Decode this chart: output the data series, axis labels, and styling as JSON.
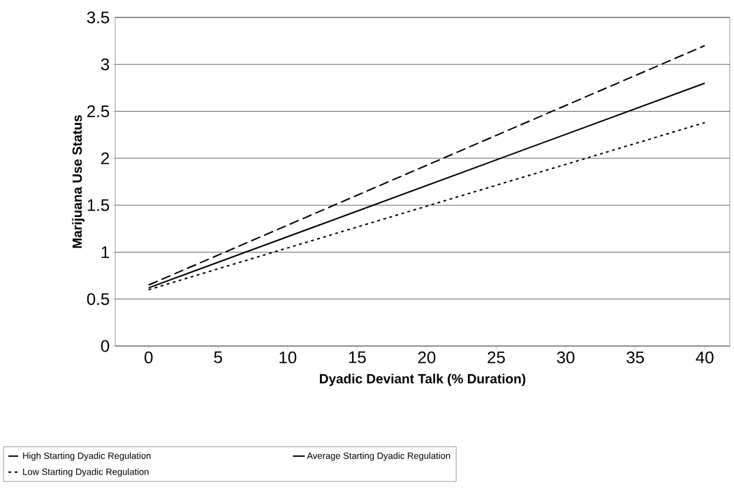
{
  "chart_data": {
    "type": "line",
    "xlabel": "Dyadic Deviant Talk (% Duration)",
    "ylabel": "Marijuana Use Status",
    "x": [
      0,
      40
    ],
    "series": [
      {
        "name": "High Starting Dyadic Regulation",
        "color": "#000000",
        "line_style": "dashed",
        "values": [
          0.65,
          3.2
        ]
      },
      {
        "name": "Average Starting Dyadic Regulation",
        "color": "#000000",
        "line_style": "solid",
        "values": [
          0.62,
          2.8
        ]
      },
      {
        "name": "Low Starting Dyadic Regulation",
        "color": "#000000",
        "line_style": "dotted",
        "values": [
          0.6,
          2.38
        ]
      }
    ],
    "xlim": [
      -2.4,
      41.8
    ],
    "xticks": [
      0,
      5,
      10,
      15,
      20,
      25,
      30,
      35,
      40
    ],
    "ylim": [
      0,
      3.5
    ],
    "yticks": [
      0,
      0.5,
      1,
      1.5,
      2,
      2.5,
      3,
      3.5
    ],
    "grid": "y",
    "legend": "bottom",
    "marker": "none"
  }
}
